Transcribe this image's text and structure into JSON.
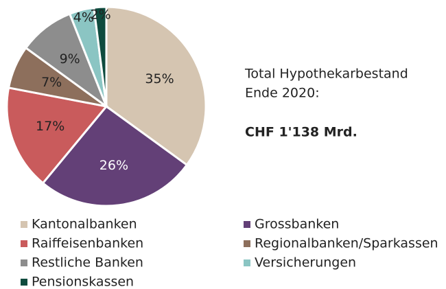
{
  "chart_data": {
    "type": "pie",
    "categories": [
      "Kantonalbanken",
      "Grossbanken",
      "Raiffeisenbanken",
      "Regionalbanken/Sparkassen",
      "Restliche Banken",
      "Versicherungen",
      "Pensionskassen"
    ],
    "values": [
      35,
      26,
      17,
      7,
      9,
      4,
      2
    ],
    "value_labels": [
      "35%",
      "26%",
      "17%",
      "7%",
      "9%",
      "4%",
      "2%"
    ],
    "colors": [
      "#d5c5b1",
      "#634077",
      "#c95b5c",
      "#8d6f5c",
      "#8d8d8d",
      "#8bc5c3",
      "#0e4b3e"
    ],
    "annotations": [
      "Total Hypothekarbestand",
      "Ende 2020:",
      "CHF 1'138 Mrd."
    ],
    "legend": true
  }
}
